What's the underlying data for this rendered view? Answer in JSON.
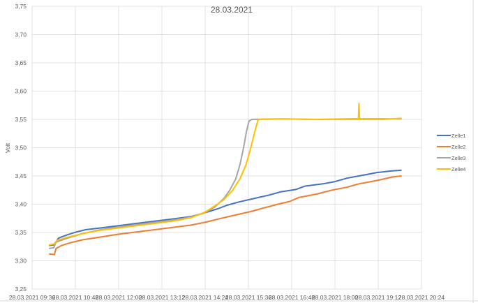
{
  "chart_data": {
    "type": "line",
    "title": "28.03.2021",
    "xlabel": "",
    "ylabel": "Volt",
    "ylim": [
      3.25,
      3.75
    ],
    "yticks": [
      "3,25",
      "3,30",
      "3,35",
      "3,40",
      "3,45",
      "3,50",
      "3,55",
      "3,60",
      "3,65",
      "3,70",
      "3,75"
    ],
    "xlim": [
      "28.03.2021 09:36",
      "28.03.2021 20:24"
    ],
    "xticks": [
      "28.03.2021 09:36",
      "28.03.2021 10:48",
      "28.03.2021 12:00",
      "28.03.2021 13:12",
      "28.03.2021 14:24",
      "28.03.2021 15:36",
      "28.03.2021 16:48",
      "28.03.2021 18:00",
      "28.03.2021 19:12",
      "28.03.2021 20:24"
    ],
    "grid": true,
    "legend_position": "right",
    "series": [
      {
        "name": "Zelle1",
        "color": "#4472C4",
        "points": [
          [
            "28.03.2021 10:05",
            3.327
          ],
          [
            "28.03.2021 10:12",
            3.328
          ],
          [
            "28.03.2021 10:20",
            3.34
          ],
          [
            "28.03.2021 10:35",
            3.346
          ],
          [
            "28.03.2021 10:50",
            3.351
          ],
          [
            "28.03.2021 11:05",
            3.355
          ],
          [
            "28.03.2021 11:30",
            3.358
          ],
          [
            "28.03.2021 12:00",
            3.362
          ],
          [
            "28.03.2021 12:30",
            3.366
          ],
          [
            "28.03.2021 13:00",
            3.37
          ],
          [
            "28.03.2021 13:30",
            3.374
          ],
          [
            "28.03.2021 14:00",
            3.378
          ],
          [
            "28.03.2021 14:24",
            3.385
          ],
          [
            "28.03.2021 14:45",
            3.392
          ],
          [
            "28.03.2021 15:00",
            3.398
          ],
          [
            "28.03.2021 15:20",
            3.404
          ],
          [
            "28.03.2021 15:45",
            3.41
          ],
          [
            "28.03.2021 16:10",
            3.416
          ],
          [
            "28.03.2021 16:30",
            3.422
          ],
          [
            "28.03.2021 16:55",
            3.426
          ],
          [
            "28.03.2021 17:10",
            3.432
          ],
          [
            "28.03.2021 17:40",
            3.436
          ],
          [
            "28.03.2021 18:00",
            3.44
          ],
          [
            "28.03.2021 18:20",
            3.446
          ],
          [
            "28.03.2021 18:50",
            3.452
          ],
          [
            "28.03.2021 19:10",
            3.456
          ],
          [
            "28.03.2021 19:35",
            3.459
          ],
          [
            "28.03.2021 19:50",
            3.46
          ]
        ]
      },
      {
        "name": "Zelle2",
        "color": "#ED7D31",
        "points": [
          [
            "28.03.2021 10:05",
            3.312
          ],
          [
            "28.03.2021 10:13",
            3.311
          ],
          [
            "28.03.2021 10:16",
            3.322
          ],
          [
            "28.03.2021 10:25",
            3.327
          ],
          [
            "28.03.2021 10:40",
            3.332
          ],
          [
            "28.03.2021 11:00",
            3.337
          ],
          [
            "28.03.2021 11:30",
            3.342
          ],
          [
            "28.03.2021 12:00",
            3.347
          ],
          [
            "28.03.2021 12:30",
            3.351
          ],
          [
            "28.03.2021 13:00",
            3.355
          ],
          [
            "28.03.2021 13:30",
            3.359
          ],
          [
            "28.03.2021 14:00",
            3.363
          ],
          [
            "28.03.2021 14:24",
            3.368
          ],
          [
            "28.03.2021 14:50",
            3.375
          ],
          [
            "28.03.2021 15:15",
            3.381
          ],
          [
            "28.03.2021 15:40",
            3.387
          ],
          [
            "28.03.2021 16:00",
            3.393
          ],
          [
            "28.03.2021 16:25",
            3.4
          ],
          [
            "28.03.2021 16:45",
            3.405
          ],
          [
            "28.03.2021 17:00",
            3.412
          ],
          [
            "28.03.2021 17:30",
            3.418
          ],
          [
            "28.03.2021 17:55",
            3.425
          ],
          [
            "28.03.2021 18:20",
            3.43
          ],
          [
            "28.03.2021 18:40",
            3.436
          ],
          [
            "28.03.2021 19:10",
            3.442
          ],
          [
            "28.03.2021 19:35",
            3.448
          ],
          [
            "28.03.2021 19:50",
            3.45
          ]
        ]
      },
      {
        "name": "Zelle3",
        "color": "#A5A5A5",
        "points": [
          [
            "28.03.2021 10:05",
            3.322
          ],
          [
            "28.03.2021 10:12",
            3.323
          ],
          [
            "28.03.2021 10:16",
            3.333
          ],
          [
            "28.03.2021 10:35",
            3.34
          ],
          [
            "28.03.2021 11:00",
            3.348
          ],
          [
            "28.03.2021 11:30",
            3.355
          ],
          [
            "28.03.2021 12:00",
            3.36
          ],
          [
            "28.03.2021 12:30",
            3.364
          ],
          [
            "28.03.2021 13:00",
            3.368
          ],
          [
            "28.03.2021 13:30",
            3.372
          ],
          [
            "28.03.2021 14:00",
            3.377
          ],
          [
            "28.03.2021 14:24",
            3.385
          ],
          [
            "28.03.2021 14:40",
            3.395
          ],
          [
            "28.03.2021 14:55",
            3.41
          ],
          [
            "28.03.2021 15:05",
            3.425
          ],
          [
            "28.03.2021 15:15",
            3.445
          ],
          [
            "28.03.2021 15:22",
            3.47
          ],
          [
            "28.03.2021 15:28",
            3.5
          ],
          [
            "28.03.2021 15:33",
            3.53
          ],
          [
            "28.03.2021 15:37",
            3.547
          ],
          [
            "28.03.2021 15:42",
            3.55
          ],
          [
            "28.03.2021 16:30",
            3.551
          ],
          [
            "28.03.2021 17:30",
            3.55
          ],
          [
            "28.03.2021 18:30",
            3.551
          ],
          [
            "28.03.2021 19:50",
            3.551
          ]
        ]
      },
      {
        "name": "Zelle4",
        "color": "#FFC000",
        "points": [
          [
            "28.03.2021 10:05",
            3.328
          ],
          [
            "28.03.2021 10:14",
            3.33
          ],
          [
            "28.03.2021 10:17",
            3.336
          ],
          [
            "28.03.2021 10:40",
            3.343
          ],
          [
            "28.03.2021 11:05",
            3.349
          ],
          [
            "28.03.2021 11:30",
            3.354
          ],
          [
            "28.03.2021 12:00",
            3.358
          ],
          [
            "28.03.2021 12:30",
            3.362
          ],
          [
            "28.03.2021 13:00",
            3.366
          ],
          [
            "28.03.2021 13:30",
            3.37
          ],
          [
            "28.03.2021 14:00",
            3.376
          ],
          [
            "28.03.2021 14:24",
            3.386
          ],
          [
            "28.03.2021 14:40",
            3.397
          ],
          [
            "28.03.2021 14:55",
            3.408
          ],
          [
            "28.03.2021 15:10",
            3.425
          ],
          [
            "28.03.2021 15:22",
            3.445
          ],
          [
            "28.03.2021 15:32",
            3.47
          ],
          [
            "28.03.2021 15:40",
            3.5
          ],
          [
            "28.03.2021 15:47",
            3.53
          ],
          [
            "28.03.2021 15:52",
            3.549
          ],
          [
            "28.03.2021 15:55",
            3.55
          ],
          [
            "28.03.2021 16:40",
            3.551
          ],
          [
            "28.03.2021 17:20",
            3.55
          ],
          [
            "28.03.2021 18:20",
            3.55
          ],
          [
            "28.03.2021 18:39",
            3.55
          ],
          [
            "28.03.2021 18:40",
            3.578
          ],
          [
            "28.03.2021 18:41",
            3.55
          ],
          [
            "28.03.2021 19:20",
            3.55
          ],
          [
            "28.03.2021 19:50",
            3.552
          ]
        ]
      }
    ]
  }
}
